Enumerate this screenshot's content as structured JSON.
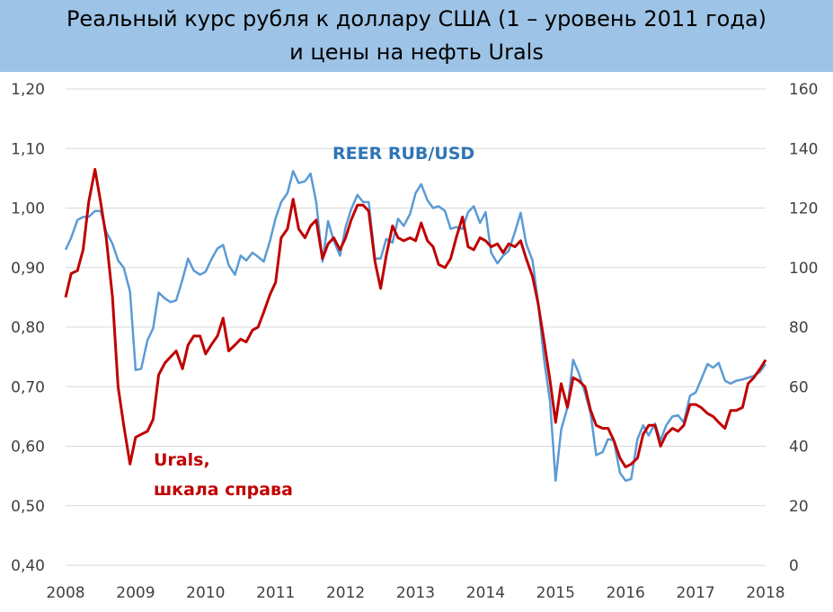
{
  "header": {
    "title_line1": "Реальный курс рубля к доллару США (1 – уровень 2011 года)",
    "title_line2": "и цены на нефть Urals"
  },
  "colors": {
    "title_background": "#9dc3e6",
    "reer": "#5b9bd5",
    "urals": "#c00000",
    "grid": "#d9d9d9"
  },
  "chart_data": {
    "type": "line",
    "x_ticks": [
      "2008",
      "2009",
      "2010",
      "2011",
      "2012",
      "2013",
      "2014",
      "2015",
      "2016",
      "2017",
      "2018"
    ],
    "xlim": [
      2008,
      2018
    ],
    "y_left": {
      "lim": [
        0.4,
        1.2
      ],
      "ticks": [
        "0,40",
        "0,50",
        "0,60",
        "0,70",
        "0,80",
        "0,90",
        "1,00",
        "1,10",
        "1,20"
      ]
    },
    "y_right": {
      "lim": [
        0,
        160
      ],
      "ticks": [
        "0",
        "20",
        "40",
        "60",
        "80",
        "100",
        "120",
        "140",
        "160"
      ]
    },
    "grid": "horizontal",
    "series": [
      {
        "name": "REER  RUB/USD",
        "axis": "left",
        "color": "#5b9bd5",
        "points": [
          [
            2008.0,
            0.93
          ],
          [
            2008.08,
            0.95
          ],
          [
            2008.17,
            0.98
          ],
          [
            2008.25,
            0.985
          ],
          [
            2008.33,
            0.985
          ],
          [
            2008.42,
            0.995
          ],
          [
            2008.5,
            0.995
          ],
          [
            2008.58,
            0.96
          ],
          [
            2008.67,
            0.94
          ],
          [
            2008.75,
            0.912
          ],
          [
            2008.83,
            0.9
          ],
          [
            2008.92,
            0.86
          ],
          [
            2009.0,
            0.728
          ],
          [
            2009.08,
            0.73
          ],
          [
            2009.17,
            0.778
          ],
          [
            2009.25,
            0.798
          ],
          [
            2009.33,
            0.858
          ],
          [
            2009.42,
            0.848
          ],
          [
            2009.5,
            0.842
          ],
          [
            2009.58,
            0.845
          ],
          [
            2009.67,
            0.88
          ],
          [
            2009.75,
            0.915
          ],
          [
            2009.83,
            0.895
          ],
          [
            2009.92,
            0.888
          ],
          [
            2010.0,
            0.893
          ],
          [
            2010.08,
            0.913
          ],
          [
            2010.17,
            0.932
          ],
          [
            2010.25,
            0.938
          ],
          [
            2010.33,
            0.904
          ],
          [
            2010.42,
            0.888
          ],
          [
            2010.5,
            0.92
          ],
          [
            2010.58,
            0.912
          ],
          [
            2010.67,
            0.925
          ],
          [
            2010.75,
            0.918
          ],
          [
            2010.83,
            0.91
          ],
          [
            2010.92,
            0.945
          ],
          [
            2011.0,
            0.983
          ],
          [
            2011.08,
            1.01
          ],
          [
            2011.17,
            1.025
          ],
          [
            2011.25,
            1.062
          ],
          [
            2011.33,
            1.042
          ],
          [
            2011.42,
            1.045
          ],
          [
            2011.5,
            1.058
          ],
          [
            2011.58,
            1.01
          ],
          [
            2011.67,
            0.91
          ],
          [
            2011.75,
            0.978
          ],
          [
            2011.83,
            0.945
          ],
          [
            2011.92,
            0.92
          ],
          [
            2012.0,
            0.968
          ],
          [
            2012.08,
            0.998
          ],
          [
            2012.17,
            1.022
          ],
          [
            2012.25,
            1.01
          ],
          [
            2012.33,
            1.01
          ],
          [
            2012.42,
            0.915
          ],
          [
            2012.5,
            0.915
          ],
          [
            2012.58,
            0.948
          ],
          [
            2012.67,
            0.942
          ],
          [
            2012.75,
            0.982
          ],
          [
            2012.83,
            0.97
          ],
          [
            2012.92,
            0.99
          ],
          [
            2013.0,
            1.025
          ],
          [
            2013.08,
            1.04
          ],
          [
            2013.17,
            1.013
          ],
          [
            2013.25,
            1.0
          ],
          [
            2013.33,
            1.003
          ],
          [
            2013.42,
            0.995
          ],
          [
            2013.5,
            0.965
          ],
          [
            2013.58,
            0.968
          ],
          [
            2013.67,
            0.965
          ],
          [
            2013.75,
            0.993
          ],
          [
            2013.83,
            1.003
          ],
          [
            2013.92,
            0.975
          ],
          [
            2014.0,
            0.993
          ],
          [
            2014.08,
            0.925
          ],
          [
            2014.17,
            0.907
          ],
          [
            2014.25,
            0.92
          ],
          [
            2014.33,
            0.928
          ],
          [
            2014.42,
            0.96
          ],
          [
            2014.5,
            0.992
          ],
          [
            2014.58,
            0.94
          ],
          [
            2014.67,
            0.912
          ],
          [
            2014.75,
            0.842
          ],
          [
            2014.83,
            0.75
          ],
          [
            2014.92,
            0.675
          ],
          [
            2015.0,
            0.542
          ],
          [
            2015.08,
            0.628
          ],
          [
            2015.17,
            0.665
          ],
          [
            2015.25,
            0.745
          ],
          [
            2015.33,
            0.723
          ],
          [
            2015.42,
            0.69
          ],
          [
            2015.5,
            0.655
          ],
          [
            2015.58,
            0.585
          ],
          [
            2015.67,
            0.59
          ],
          [
            2015.75,
            0.612
          ],
          [
            2015.83,
            0.61
          ],
          [
            2015.92,
            0.555
          ],
          [
            2016.0,
            0.542
          ],
          [
            2016.08,
            0.545
          ],
          [
            2016.17,
            0.612
          ],
          [
            2016.25,
            0.635
          ],
          [
            2016.33,
            0.618
          ],
          [
            2016.42,
            0.638
          ],
          [
            2016.5,
            0.61
          ],
          [
            2016.58,
            0.635
          ],
          [
            2016.67,
            0.65
          ],
          [
            2016.75,
            0.652
          ],
          [
            2016.83,
            0.64
          ],
          [
            2016.92,
            0.685
          ],
          [
            2017.0,
            0.69
          ],
          [
            2017.08,
            0.712
          ],
          [
            2017.17,
            0.738
          ],
          [
            2017.25,
            0.732
          ],
          [
            2017.33,
            0.74
          ],
          [
            2017.42,
            0.71
          ],
          [
            2017.5,
            0.705
          ],
          [
            2017.58,
            0.71
          ],
          [
            2017.67,
            0.712
          ],
          [
            2017.75,
            0.715
          ],
          [
            2017.83,
            0.718
          ],
          [
            2017.92,
            0.725
          ],
          [
            2018.0,
            0.738
          ]
        ]
      },
      {
        "name": "Urals,\nшкала справа",
        "axis": "right",
        "color": "#c00000",
        "points": [
          [
            2008.0,
            90
          ],
          [
            2008.08,
            98
          ],
          [
            2008.17,
            99
          ],
          [
            2008.25,
            106
          ],
          [
            2008.33,
            122
          ],
          [
            2008.42,
            133
          ],
          [
            2008.5,
            122
          ],
          [
            2008.58,
            110
          ],
          [
            2008.67,
            90
          ],
          [
            2008.75,
            60
          ],
          [
            2008.83,
            47
          ],
          [
            2008.92,
            34
          ],
          [
            2009.0,
            43
          ],
          [
            2009.08,
            44
          ],
          [
            2009.17,
            45
          ],
          [
            2009.25,
            49
          ],
          [
            2009.33,
            64
          ],
          [
            2009.42,
            68
          ],
          [
            2009.5,
            70
          ],
          [
            2009.58,
            72
          ],
          [
            2009.67,
            66
          ],
          [
            2009.75,
            74
          ],
          [
            2009.83,
            77
          ],
          [
            2009.92,
            77
          ],
          [
            2010.0,
            71
          ],
          [
            2010.08,
            74
          ],
          [
            2010.17,
            77
          ],
          [
            2010.25,
            83
          ],
          [
            2010.33,
            72
          ],
          [
            2010.42,
            74
          ],
          [
            2010.5,
            76
          ],
          [
            2010.58,
            75
          ],
          [
            2010.67,
            79
          ],
          [
            2010.75,
            80
          ],
          [
            2010.83,
            85
          ],
          [
            2010.92,
            91
          ],
          [
            2011.0,
            95
          ],
          [
            2011.08,
            110
          ],
          [
            2011.17,
            113
          ],
          [
            2011.25,
            123
          ],
          [
            2011.33,
            113
          ],
          [
            2011.42,
            110
          ],
          [
            2011.5,
            114
          ],
          [
            2011.58,
            116
          ],
          [
            2011.67,
            103
          ],
          [
            2011.75,
            108
          ],
          [
            2011.83,
            110
          ],
          [
            2011.92,
            106
          ],
          [
            2012.0,
            110
          ],
          [
            2012.08,
            116
          ],
          [
            2012.17,
            121
          ],
          [
            2012.25,
            121
          ],
          [
            2012.33,
            119
          ],
          [
            2012.42,
            102
          ],
          [
            2012.5,
            93
          ],
          [
            2012.58,
            104
          ],
          [
            2012.67,
            114
          ],
          [
            2012.75,
            110
          ],
          [
            2012.83,
            109
          ],
          [
            2012.92,
            110
          ],
          [
            2013.0,
            109
          ],
          [
            2013.08,
            115
          ],
          [
            2013.17,
            109
          ],
          [
            2013.25,
            107
          ],
          [
            2013.33,
            101
          ],
          [
            2013.42,
            100
          ],
          [
            2013.5,
            103
          ],
          [
            2013.58,
            110
          ],
          [
            2013.67,
            117
          ],
          [
            2013.75,
            107
          ],
          [
            2013.83,
            106
          ],
          [
            2013.92,
            110
          ],
          [
            2014.0,
            109
          ],
          [
            2014.08,
            107
          ],
          [
            2014.17,
            108
          ],
          [
            2014.25,
            105
          ],
          [
            2014.33,
            108
          ],
          [
            2014.42,
            107
          ],
          [
            2014.5,
            109
          ],
          [
            2014.58,
            103
          ],
          [
            2014.67,
            97
          ],
          [
            2014.75,
            88
          ],
          [
            2014.83,
            76
          ],
          [
            2014.92,
            62
          ],
          [
            2015.0,
            48
          ],
          [
            2015.08,
            61
          ],
          [
            2015.17,
            53
          ],
          [
            2015.25,
            63
          ],
          [
            2015.33,
            62
          ],
          [
            2015.42,
            60
          ],
          [
            2015.5,
            52
          ],
          [
            2015.58,
            47
          ],
          [
            2015.67,
            46
          ],
          [
            2015.75,
            46
          ],
          [
            2015.83,
            42
          ],
          [
            2015.92,
            36
          ],
          [
            2016.0,
            33
          ],
          [
            2016.08,
            34
          ],
          [
            2016.17,
            36
          ],
          [
            2016.25,
            44
          ],
          [
            2016.33,
            47
          ],
          [
            2016.42,
            47
          ],
          [
            2016.5,
            40
          ],
          [
            2016.58,
            44
          ],
          [
            2016.67,
            46
          ],
          [
            2016.75,
            45
          ],
          [
            2016.83,
            47
          ],
          [
            2016.92,
            54
          ],
          [
            2017.0,
            54
          ],
          [
            2017.08,
            53
          ],
          [
            2017.17,
            51
          ],
          [
            2017.25,
            50
          ],
          [
            2017.33,
            48
          ],
          [
            2017.42,
            46
          ],
          [
            2017.5,
            52
          ],
          [
            2017.58,
            52
          ],
          [
            2017.67,
            53
          ],
          [
            2017.75,
            61
          ],
          [
            2017.83,
            63
          ],
          [
            2017.92,
            66
          ],
          [
            2018.0,
            69
          ]
        ]
      }
    ],
    "annotations": [
      {
        "text": "REER  RUB/USD",
        "color": "#2e75b6"
      },
      {
        "text": "Urals,",
        "color": "#c00000"
      },
      {
        "text": "шкала справа",
        "color": "#c00000"
      }
    ]
  }
}
